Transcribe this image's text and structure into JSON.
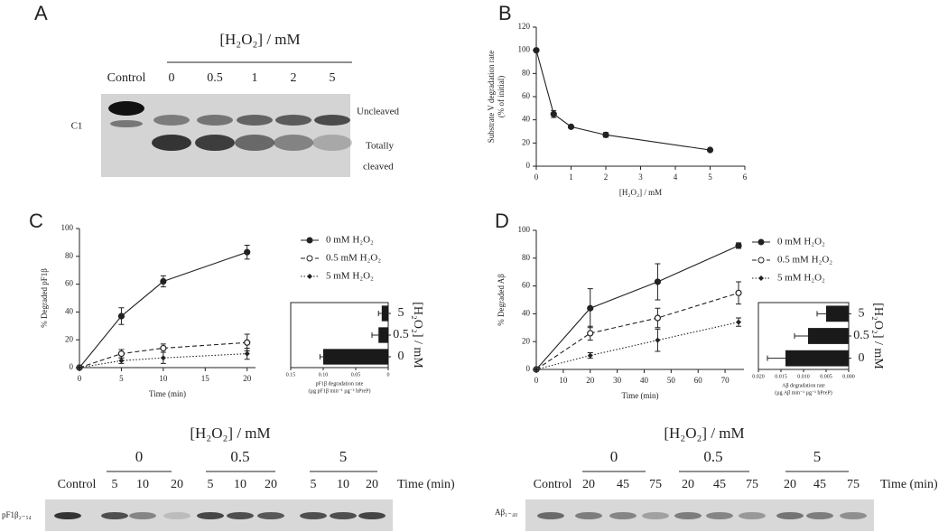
{
  "figure": {
    "panel_labels": [
      "A",
      "B",
      "C",
      "D"
    ],
    "gel_a": {
      "title": "[H₂O₂] / mM",
      "control": "Control",
      "lanes": [
        "0",
        "0.5",
        "1",
        "2",
        "5"
      ],
      "row_label": "C1",
      "uncleaved": "Uncleaved",
      "cleaved": [
        "Totally",
        "cleaved"
      ]
    },
    "blot_c": {
      "title": "[H₂O₂] / mM",
      "control": "Control",
      "groups": [
        "0",
        "0.5",
        "5"
      ],
      "times": [
        "5",
        "10",
        "20",
        "5",
        "10",
        "20",
        "5",
        "10",
        "20"
      ],
      "time_label": "Time (min)",
      "row_label": "pF1β₂₋₅₄"
    },
    "blot_d": {
      "title": "[H₂O₂] / mM",
      "control": "Control",
      "groups": [
        "0",
        "0.5",
        "5"
      ],
      "times": [
        "20",
        "45",
        "75",
        "20",
        "45",
        "75",
        "20",
        "45",
        "75"
      ],
      "time_label": "Time (min)",
      "row_label": "Aβ₁₋₄₀"
    }
  },
  "chart_data": [
    {
      "type": "line",
      "xlabel": "[H₂O₂] / mM",
      "ylabel": [
        "Substrate V degradation rate",
        "(% of initial)"
      ],
      "x": [
        0,
        0.5,
        1,
        2,
        5
      ],
      "xlim": [
        0,
        6
      ],
      "xticks": [
        0,
        1,
        2,
        3,
        4,
        5,
        6
      ],
      "ylim": [
        0,
        120
      ],
      "yticks": [
        0,
        20,
        40,
        60,
        80,
        100,
        120
      ],
      "series": [
        {
          "values": [
            100,
            45,
            34,
            27,
            14
          ],
          "errors": [
            0,
            3,
            1,
            2,
            0
          ],
          "color": "#222",
          "linestyle": "solid",
          "marker": "circle"
        }
      ]
    },
    {
      "type": "line",
      "xlabel": "Time (min)",
      "ylabel": [
        "% Degraded pF1β"
      ],
      "x": [
        0,
        5,
        10,
        20
      ],
      "xlim": [
        0,
        21
      ],
      "xticks": [
        0,
        5,
        10,
        15,
        20
      ],
      "ylim": [
        0,
        100
      ],
      "yticks": [
        0,
        20,
        40,
        60,
        80,
        100
      ],
      "series": [
        {
          "name": "0 mM H₂O₂",
          "values": [
            0,
            37,
            62,
            83
          ],
          "errors": [
            0,
            6,
            4,
            5
          ],
          "color": "#222",
          "linestyle": "solid",
          "marker": "circle"
        },
        {
          "name": "0.5 mM H₂O₂",
          "values": [
            0,
            10,
            14,
            18
          ],
          "errors": [
            0,
            3,
            3,
            6
          ],
          "color": "#222",
          "linestyle": "dashed",
          "marker": "open-circle"
        },
        {
          "name": "5 mM H₂O₂",
          "values": [
            0,
            5,
            7,
            10
          ],
          "errors": [
            0,
            2,
            4,
            4
          ],
          "color": "#222",
          "linestyle": "dotted",
          "marker": "diamond"
        }
      ]
    },
    {
      "type": "barh",
      "xlabel": [
        "pF1β degradation rate",
        "(µg pF1β min⁻¹ µg⁻¹ hPreP)"
      ],
      "ylabel": "[H₂O₂] / mM",
      "categories": [
        "5",
        "0.5",
        "0"
      ],
      "values": [
        0.01,
        0.015,
        0.1
      ],
      "errors": [
        0.005,
        0.01,
        0.005
      ],
      "color": "#1a1a1a",
      "xlim": [
        0.15,
        0
      ],
      "xticks": [
        0.15,
        {
          "value": 0.1,
          "label": "0.10"
        },
        0.05,
        0
      ]
    },
    {
      "type": "line",
      "xlabel": "Time (min)",
      "ylabel": [
        "% Degraded Aβ"
      ],
      "x": [
        0,
        20,
        45,
        75
      ],
      "xlim": [
        0,
        77
      ],
      "xticks": [
        0,
        10,
        20,
        30,
        40,
        50,
        60,
        70
      ],
      "ylim": [
        0,
        100
      ],
      "yticks": [
        0,
        20,
        40,
        60,
        80,
        100
      ],
      "series": [
        {
          "name": "0 mM H₂O₂",
          "values": [
            0,
            44,
            63,
            89
          ],
          "errors": [
            0,
            14,
            13,
            2
          ],
          "color": "#222",
          "linestyle": "solid",
          "marker": "circle"
        },
        {
          "name": "0.5 mM H₂O₂",
          "values": [
            0,
            26,
            37,
            55
          ],
          "errors": [
            0,
            5,
            7,
            8
          ],
          "color": "#222",
          "linestyle": "dashed",
          "marker": "open-circle"
        },
        {
          "name": "5 mM H₂O₂",
          "values": [
            0,
            10,
            21,
            34
          ],
          "errors": [
            0,
            2,
            8,
            3
          ],
          "color": "#222",
          "linestyle": "dotted",
          "marker": "diamond"
        }
      ]
    },
    {
      "type": "barh",
      "xlabel": [
        "Aβ degradation rate",
        "(µg Aβ min⁻¹ µg⁻¹ hPreP)"
      ],
      "ylabel": "[H₂O₂] / mM",
      "categories": [
        "5",
        "0.5",
        "0"
      ],
      "values": [
        0.005,
        0.009,
        0.014
      ],
      "errors": [
        0.002,
        0.003,
        0.004
      ],
      "color": "#1a1a1a",
      "xlim": [
        0.02,
        0
      ],
      "xticks": [
        {
          "value": 0.02,
          "label": "0.020"
        },
        0.015,
        {
          "value": 0.01,
          "label": "0.010"
        },
        0.005,
        {
          "value": 0,
          "label": "0.000"
        }
      ]
    }
  ]
}
